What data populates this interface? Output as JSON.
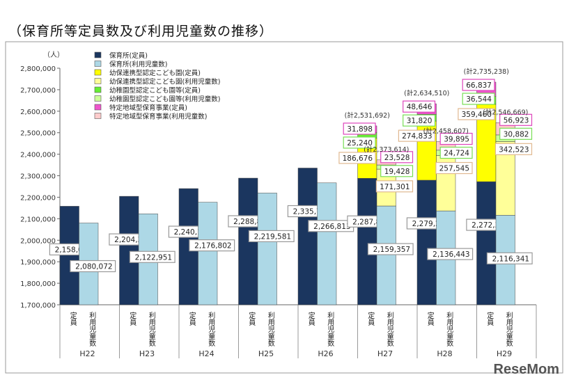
{
  "title": "（保育所等定員数及び利用児童数の推移）",
  "logo": "ReseMom",
  "chart_data": {
    "type": "bar",
    "stacked": true,
    "ylabel": "（人）",
    "ylim": [
      1700000,
      2800000
    ],
    "yticks": [
      "1,700,000",
      "1,800,000",
      "1,900,000",
      "2,000,000",
      "2,100,000",
      "2,200,000",
      "2,300,000",
      "2,400,000",
      "2,500,000",
      "2,600,000",
      "2,700,000",
      "2,800,000"
    ],
    "legend": [
      {
        "name": "保育所(定員)",
        "color": "#1b365f"
      },
      {
        "name": "保育所(利用児童数)",
        "color": "#add8e6"
      },
      {
        "name": "幼保連携型認定こども園(定員)",
        "color": "#ffff00"
      },
      {
        "name": "幼保連携型認定こども園(利用児童数)",
        "color": "#ffff99"
      },
      {
        "name": "幼稚園型認定こども園等(定員)",
        "color": "#66ee33"
      },
      {
        "name": "幼稚園型認定こども園等(利用児童数)",
        "color": "#ccff99"
      },
      {
        "name": "特定地域型保育事業(定員)",
        "color": "#ee55cc"
      },
      {
        "name": "特定地域型保育事業(利用児童数)",
        "color": "#ffcccc"
      }
    ],
    "bar_labels": [
      "定員",
      "利用児童数"
    ],
    "categories": [
      "H22",
      "H23",
      "H24",
      "H25",
      "H26",
      "H27",
      "H28",
      "H29"
    ],
    "capacity": [
      [
        2158045
      ],
      [
        2204393
      ],
      [
        2240178
      ],
      [
        2288819
      ],
      [
        2335724
      ],
      [
        2287878,
        186676,
        25240,
        31898
      ],
      [
        2279211,
        274833,
        31820,
        48646
      ],
      [
        2272397,
        359460,
        36544,
        66837
      ]
    ],
    "usage": [
      [
        2080072
      ],
      [
        2122951
      ],
      [
        2176802
      ],
      [
        2219581
      ],
      [
        2266813
      ],
      [
        2159357,
        171301,
        19428,
        23528
      ],
      [
        2136443,
        257545,
        24724,
        39895
      ],
      [
        2116341,
        342523,
        30882,
        56923
      ]
    ],
    "capacity_totals": [
      "",
      "",
      "",
      "",
      "",
      "(計2,531,692)",
      "(計2,634,510)",
      "(計2,735,238)"
    ],
    "usage_totals": [
      "",
      "",
      "",
      "",
      "",
      "(計2,373,614)",
      "(計2,458,607)",
      "(計2,546,669)"
    ],
    "value_labels_capacity": [
      [
        "2,158,045"
      ],
      [
        "2,204,393"
      ],
      [
        "2,240,178"
      ],
      [
        "2,288,819"
      ],
      [
        "2,335,724"
      ],
      [
        "2,287,878",
        "186,676",
        "25,240",
        "31,898"
      ],
      [
        "2,279,211",
        "274,833",
        "31,820",
        "48,646"
      ],
      [
        "2,272,397",
        "359,460",
        "36,544",
        "66,837"
      ]
    ],
    "value_labels_usage": [
      [
        "2,080,072"
      ],
      [
        "2,122,951"
      ],
      [
        "2,176,802"
      ],
      [
        "2,219,581"
      ],
      [
        "2,266,813"
      ],
      [
        "2,159,357",
        "171,301",
        "19,428",
        "23,528"
      ],
      [
        "2,136,443",
        "257,545",
        "24,724",
        "39,895"
      ],
      [
        "2,116,341",
        "342,523",
        "30,882",
        "56,923"
      ]
    ]
  }
}
